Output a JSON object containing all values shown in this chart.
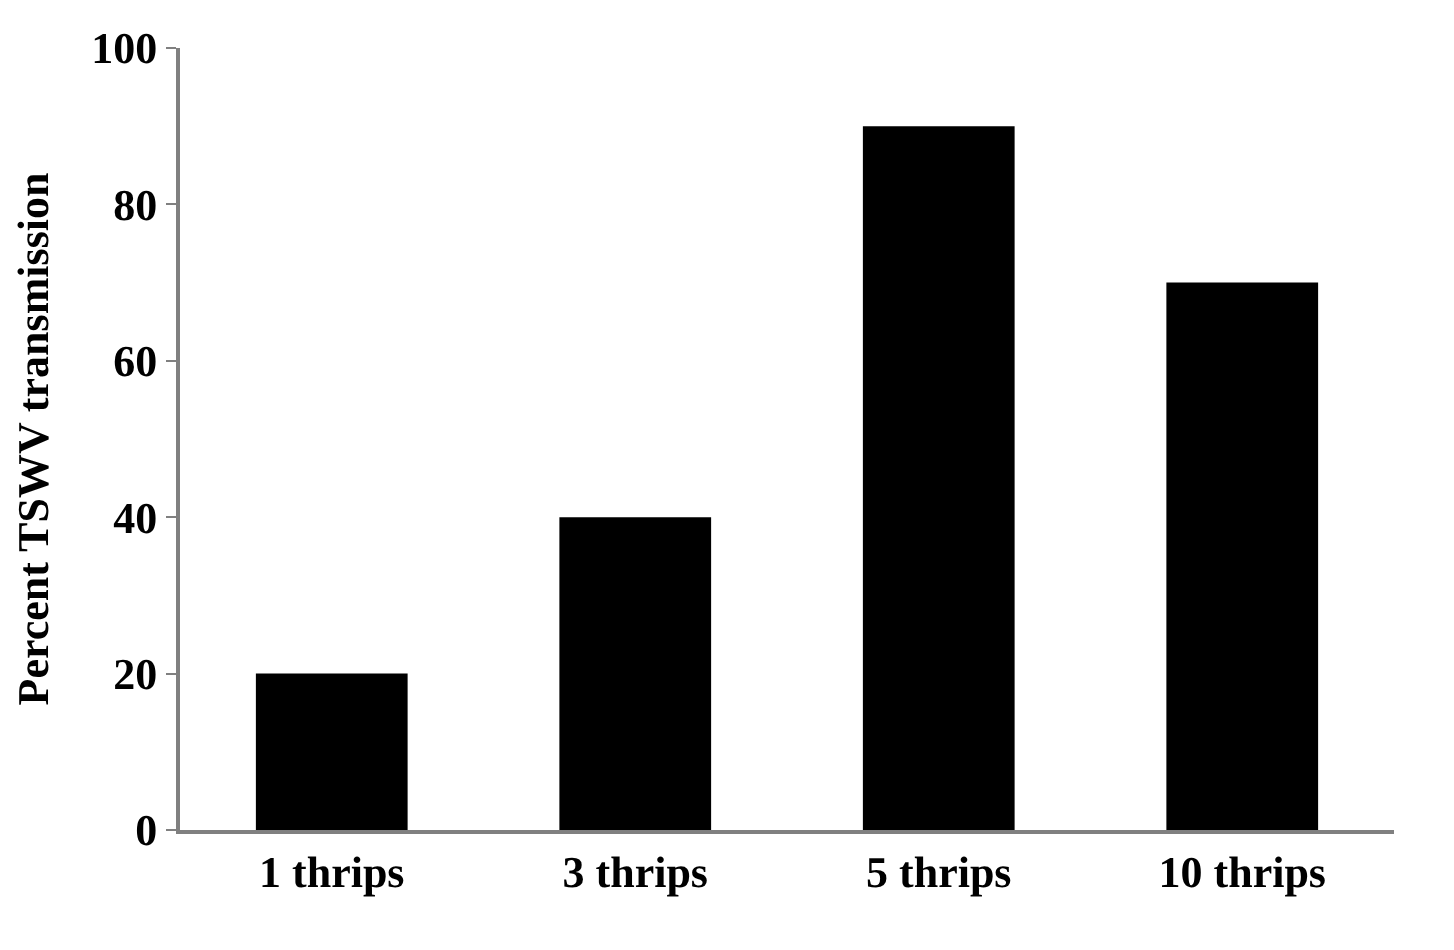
{
  "chart_data": {
    "type": "bar",
    "ylabel": "Percent TSWV transmission",
    "categories": [
      "1 thrips",
      "3 thrips",
      "5 thrips",
      "10 thrips"
    ],
    "values": [
      20,
      40,
      90,
      70
    ],
    "color": "#000000",
    "ylim": [
      0,
      100
    ],
    "yticks": [
      0,
      20,
      40,
      60,
      80,
      100
    ]
  }
}
